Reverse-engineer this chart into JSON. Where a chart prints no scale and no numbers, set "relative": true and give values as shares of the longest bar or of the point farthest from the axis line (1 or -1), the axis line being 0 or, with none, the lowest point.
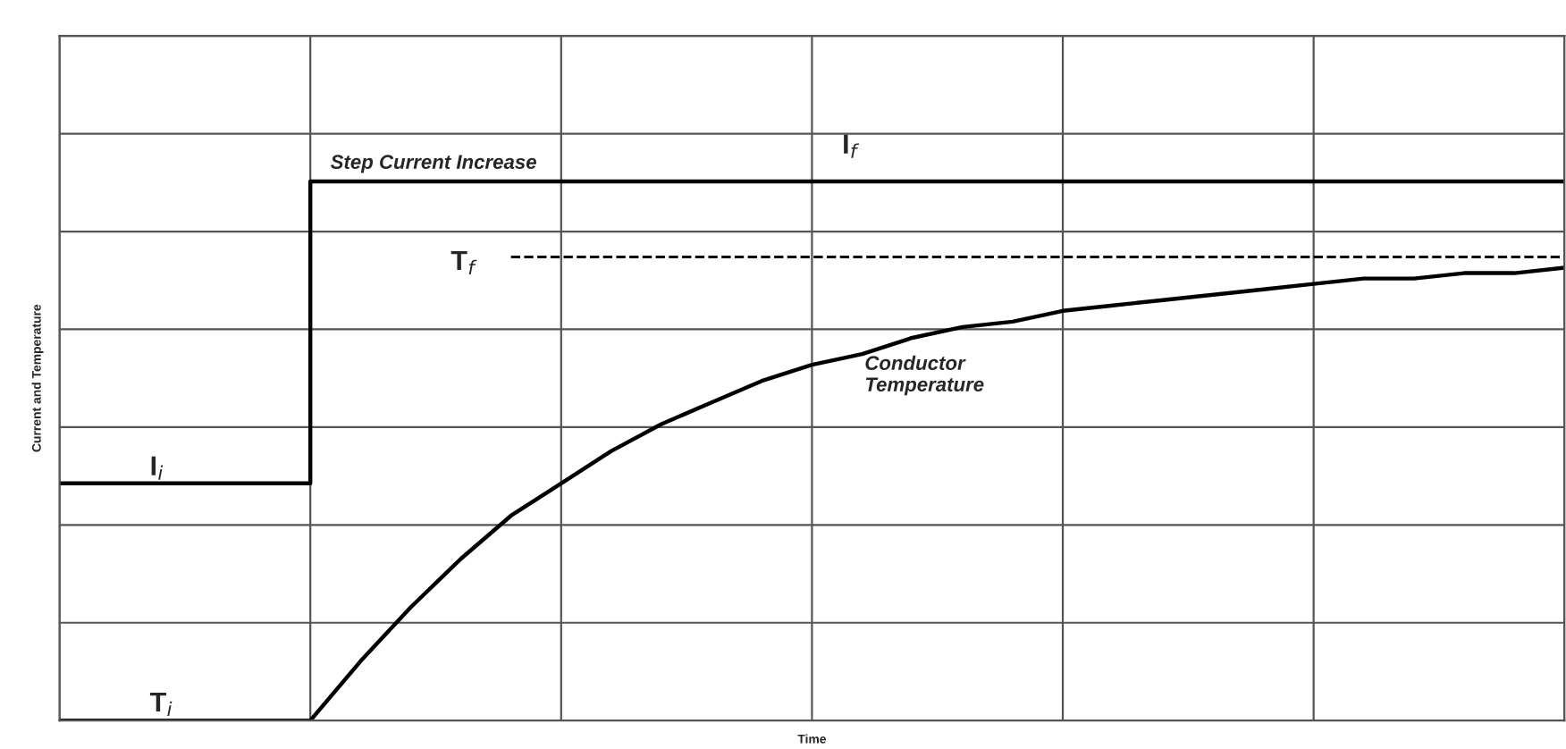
{
  "chart_data": {
    "type": "line",
    "relative": true,
    "xlabel": "Time",
    "ylabel": "Current and Temperature",
    "categories": [
      null,
      null,
      null,
      null,
      null,
      null,
      null,
      null,
      null,
      null,
      null,
      null,
      null,
      null,
      null,
      null,
      null,
      null,
      null,
      null,
      null,
      null,
      null,
      null,
      null,
      null,
      null,
      null,
      null,
      null,
      null
    ],
    "series": [
      {
        "type": "step",
        "color": "#000000",
        "line_style": "solid",
        "values": [
          0.44,
          0.44,
          0.44,
          0.44,
          0.44,
          1,
          1,
          1,
          1,
          1,
          1,
          1,
          1,
          1,
          1,
          1,
          1,
          1,
          1,
          1,
          1,
          1,
          1,
          1,
          1,
          1,
          1,
          1,
          1,
          1,
          1
        ]
      },
      {
        "color": "#000000",
        "line_style": "solid",
        "values": [
          0,
          0,
          0,
          0,
          0,
          0,
          0.11,
          0.21,
          0.3,
          0.38,
          0.44,
          0.5,
          0.55,
          0.59,
          0.63,
          0.66,
          0.68,
          0.71,
          0.73,
          0.74,
          0.76,
          0.77,
          0.78,
          0.79,
          0.8,
          0.81,
          0.82,
          0.82,
          0.83,
          0.83,
          0.84
        ]
      },
      {
        "color": "#000000",
        "line_style": "dashed",
        "values": [
          null,
          null,
          null,
          null,
          null,
          null,
          null,
          null,
          null,
          0.86,
          0.86,
          0.86,
          0.86,
          0.86,
          0.86,
          0.86,
          0.86,
          0.86,
          0.86,
          0.86,
          0.86,
          0.86,
          0.86,
          0.86,
          0.86,
          0.86,
          0.86,
          0.86,
          0.86,
          0.86,
          0.86
        ]
      }
    ],
    "annotations": [
      "Step Current Increase",
      "I$_{f}$",
      "T$_{f}$",
      "Conductor\nTemperature",
      "I$_{i}$",
      "T$_{i}$"
    ],
    "grid": true
  }
}
